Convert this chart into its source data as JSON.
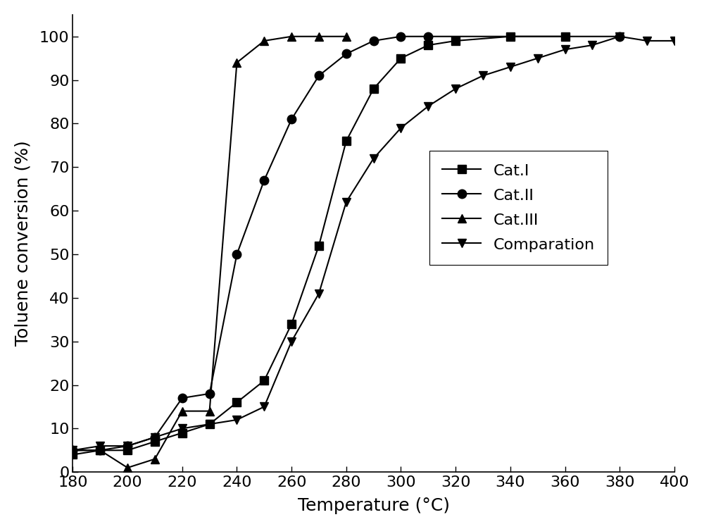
{
  "cat1": {
    "label": "Cat.I",
    "x": [
      180,
      190,
      200,
      210,
      220,
      230,
      240,
      250,
      260,
      270,
      280,
      290,
      300,
      310,
      320,
      340,
      360
    ],
    "y": [
      4,
      5,
      5,
      7,
      9,
      11,
      16,
      21,
      34,
      52,
      76,
      88,
      95,
      98,
      99,
      100,
      100
    ]
  },
  "cat2": {
    "label": "Cat.II",
    "x": [
      180,
      190,
      200,
      210,
      220,
      230,
      240,
      250,
      260,
      270,
      280,
      290,
      300,
      310,
      380
    ],
    "y": [
      5,
      5,
      6,
      8,
      17,
      18,
      50,
      67,
      81,
      91,
      96,
      99,
      100,
      100,
      100
    ]
  },
  "cat3": {
    "label": "Cat.III",
    "x": [
      180,
      190,
      200,
      210,
      220,
      230,
      240,
      250,
      260,
      270,
      280
    ],
    "y": [
      5,
      5,
      1,
      3,
      14,
      14,
      94,
      99,
      100,
      100,
      100
    ]
  },
  "comparation": {
    "label": "Comparation",
    "x": [
      180,
      190,
      200,
      210,
      220,
      230,
      240,
      250,
      260,
      270,
      280,
      290,
      300,
      310,
      320,
      330,
      340,
      350,
      360,
      370,
      380,
      390,
      400
    ],
    "y": [
      5,
      6,
      6,
      8,
      10,
      11,
      12,
      15,
      30,
      41,
      62,
      72,
      79,
      84,
      88,
      91,
      93,
      95,
      97,
      98,
      100,
      99,
      99
    ]
  },
  "xlabel": "Temperature (°C)",
  "ylabel": "Toluene conversion (%)",
  "xlim": [
    180,
    400
  ],
  "ylim": [
    0,
    105
  ],
  "xticks": [
    180,
    200,
    220,
    240,
    260,
    280,
    300,
    320,
    340,
    360,
    380,
    400
  ],
  "yticks": [
    0,
    10,
    20,
    30,
    40,
    50,
    60,
    70,
    80,
    90,
    100
  ],
  "line_color": "#000000",
  "bg_color": "#ffffff",
  "marker_size": 9,
  "line_width": 1.5,
  "tick_fontsize": 16,
  "label_fontsize": 18,
  "legend_fontsize": 16
}
